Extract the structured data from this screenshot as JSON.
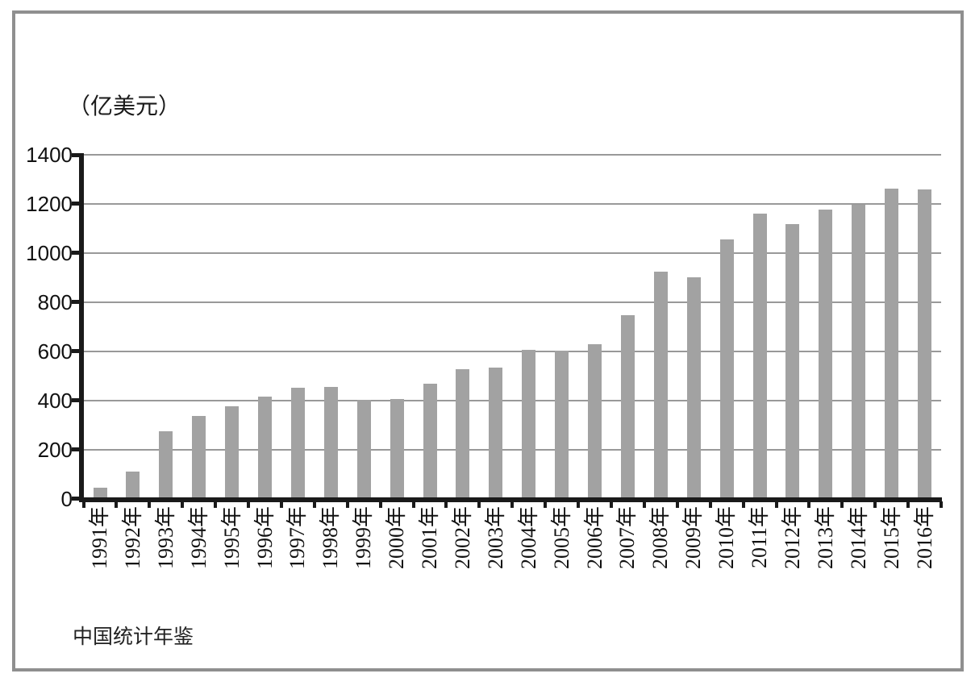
{
  "chart_data": {
    "type": "bar",
    "title": "（亿美元）",
    "source": "中国统计年鉴",
    "categories": [
      "1991年",
      "1992年",
      "1993年",
      "1994年",
      "1995年",
      "1996年",
      "1997年",
      "1998年",
      "1999年",
      "2000年",
      "2001年",
      "2002年",
      "2003年",
      "2004年",
      "2005年",
      "2006年",
      "2007年",
      "2008年",
      "2009年",
      "2010年",
      "2011年",
      "2012年",
      "2013年",
      "2014年",
      "2015年",
      "2016年"
    ],
    "values": [
      44,
      110,
      275,
      338,
      375,
      417,
      453,
      455,
      403,
      407,
      469,
      527,
      535,
      606,
      603,
      630,
      748,
      924,
      900,
      1057,
      1160,
      1117,
      1176,
      1196,
      1263,
      1259
    ],
    "xlabel": "",
    "ylabel": "（亿美元）",
    "ylim": [
      0,
      1400
    ],
    "ytick_step": 200,
    "ytick_labels": [
      "0",
      "200",
      "400",
      "600",
      "800",
      "1000",
      "1200",
      "1400"
    ],
    "grid": true,
    "legend": "none",
    "colors": {
      "bar": "#a2a2a2",
      "gridline": "#999999",
      "axis": "#1a1a1a",
      "frame_border": "#8f8f8f",
      "text": "#111111",
      "background": "#ffffff"
    }
  }
}
